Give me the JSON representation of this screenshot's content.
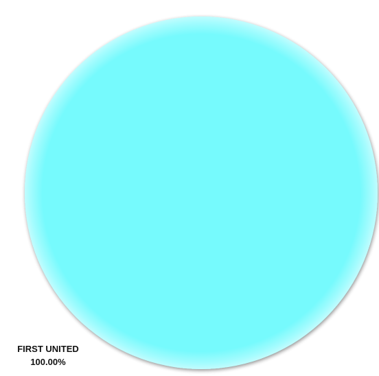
{
  "chart_data": {
    "type": "pie",
    "slices": [
      {
        "label": "FIRST UNITED",
        "value": 100,
        "value_label": "100.00%",
        "color": "#76FAFD"
      }
    ],
    "legend": "none",
    "style": "3d-shaded"
  }
}
